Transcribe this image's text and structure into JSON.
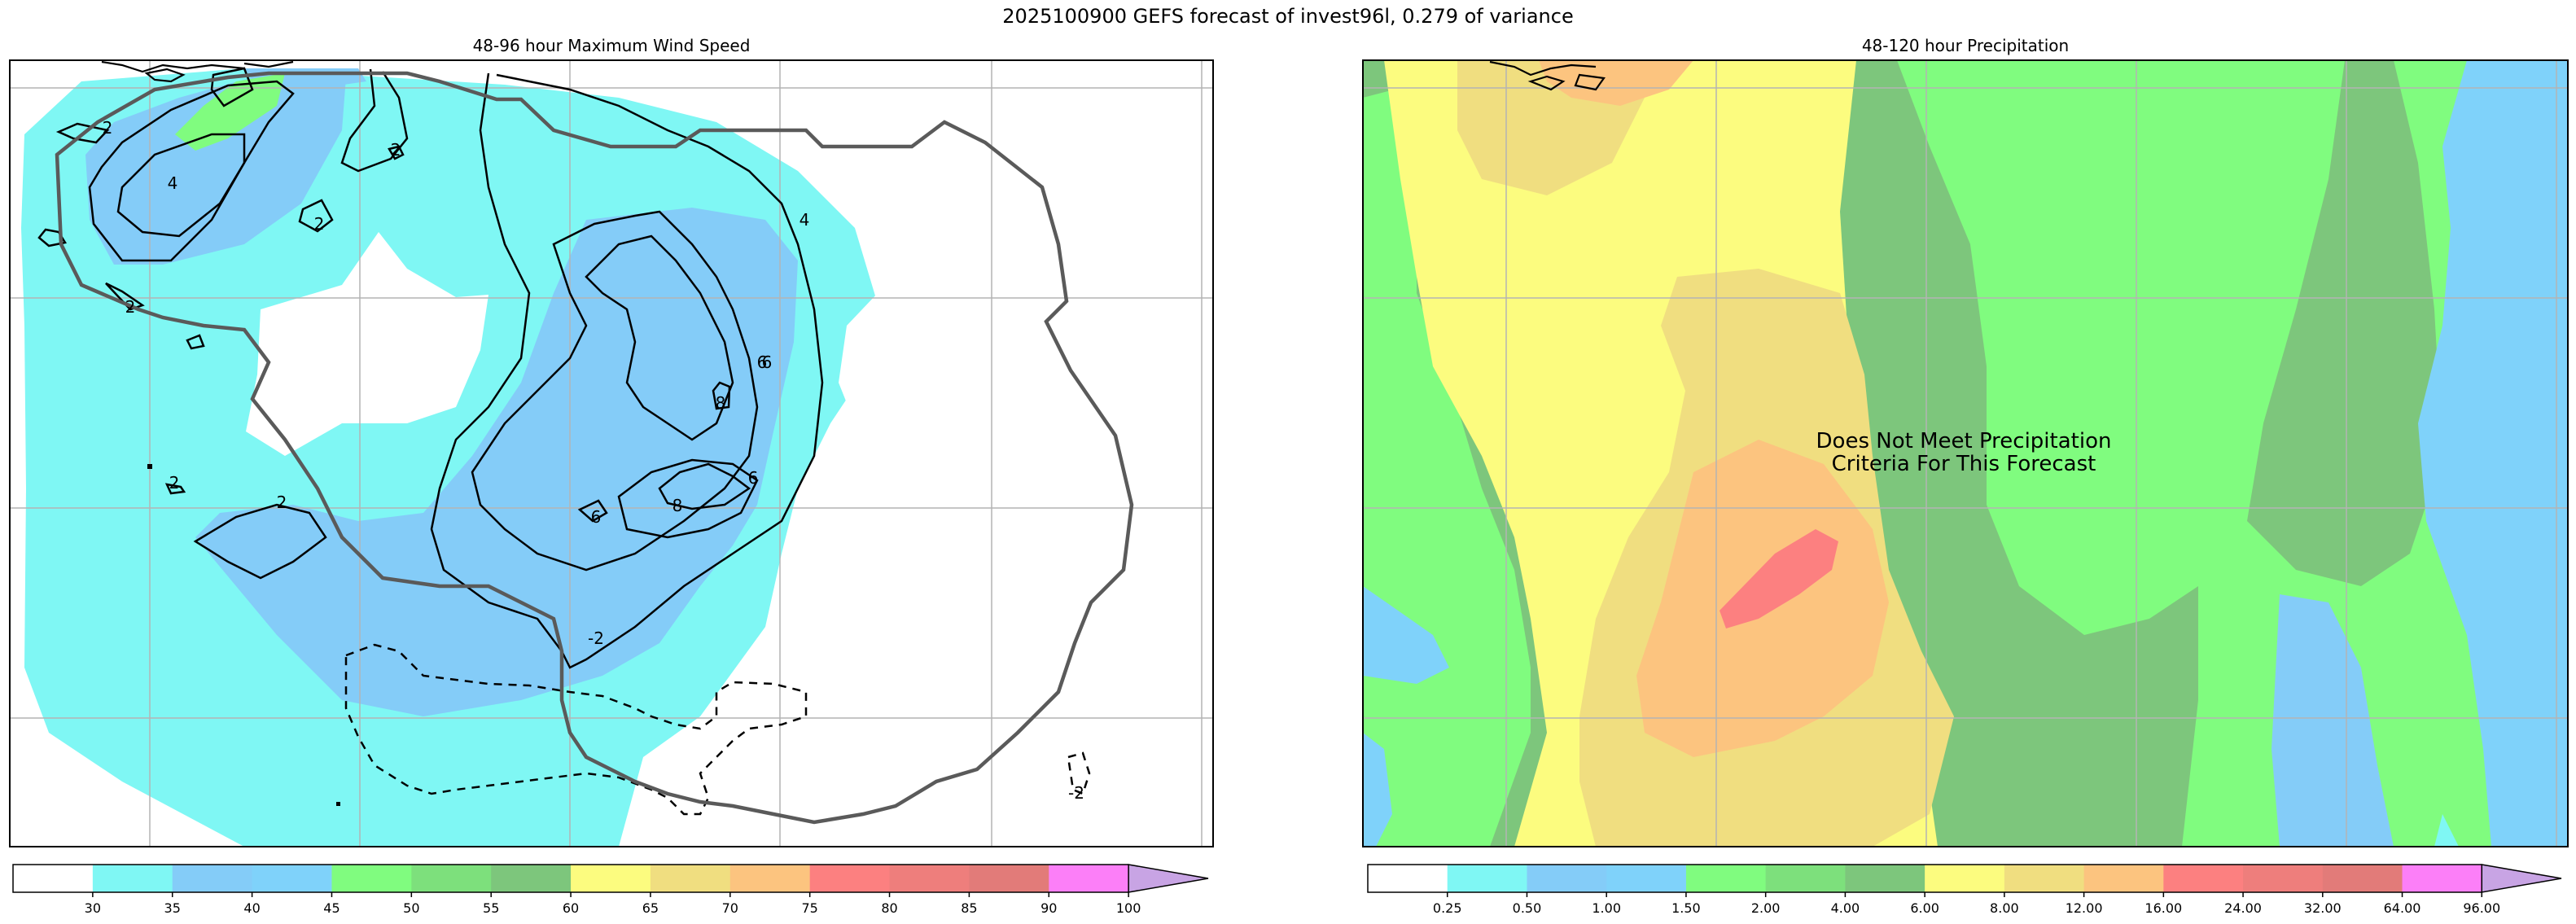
{
  "figure": {
    "suptitle": "2025100900 GEFS forecast of invest96l, 0.279 of variance"
  },
  "chart_data": [
    {
      "type": "contour",
      "title": "48-96 hour Maximum Wind Speed",
      "xlabel": "",
      "ylabel": "",
      "grid": true,
      "filled_levels": [
        30,
        35,
        40,
        45,
        50,
        55,
        60,
        65,
        70,
        75,
        80,
        85,
        90,
        100
      ],
      "level_colors": [
        "#ffffff",
        "#7ff7f4",
        "#84ccf8",
        "#7fd2fa",
        "#80fc7f",
        "#7de07c",
        "#7dc67c",
        "#fcfc7f",
        "#f0de80",
        "#fcc47f",
        "#fc8080",
        "#ee7e7c",
        "#e27b79",
        "#fc7ff8",
        "#c8a4e4"
      ],
      "colorbar": {
        "tick_labels": [
          "30",
          "35",
          "40",
          "45",
          "50",
          "55",
          "60",
          "65",
          "70",
          "75",
          "80",
          "85",
          "90",
          "100"
        ],
        "extend": "max"
      },
      "line_contour_labels": [
        "2",
        "2",
        "2",
        "2",
        "2",
        "4",
        "4",
        "6",
        "6",
        "6",
        "6",
        "8",
        "8",
        "2",
        "-2",
        "-2"
      ]
    },
    {
      "type": "contour",
      "title": "48-120 hour Precipitation",
      "xlabel": "",
      "ylabel": "",
      "grid": true,
      "annotation": "Does Not Meet Precipitation\nCriteria For This Forecast",
      "filled_levels": [
        0.25,
        0.5,
        1.0,
        1.5,
        2.0,
        4.0,
        6.0,
        8.0,
        12.0,
        16.0,
        24.0,
        32.0,
        64.0,
        96.0
      ],
      "level_colors": [
        "#ffffff",
        "#7ff7f4",
        "#84ccf8",
        "#7fd2fa",
        "#80fc7f",
        "#7de07c",
        "#7dc67c",
        "#fcfc7f",
        "#f0de80",
        "#fcc47f",
        "#fc8080",
        "#ee7e7c",
        "#e27b79",
        "#fc7ff8",
        "#c8a4e4"
      ],
      "colorbar": {
        "tick_labels": [
          "0.25",
          "0.50",
          "1.00",
          "1.50",
          "2.00",
          "4.00",
          "6.00",
          "8.00",
          "12.00",
          "16.00",
          "24.00",
          "32.00",
          "64.00",
          "96.00"
        ],
        "extend": "max"
      }
    }
  ]
}
